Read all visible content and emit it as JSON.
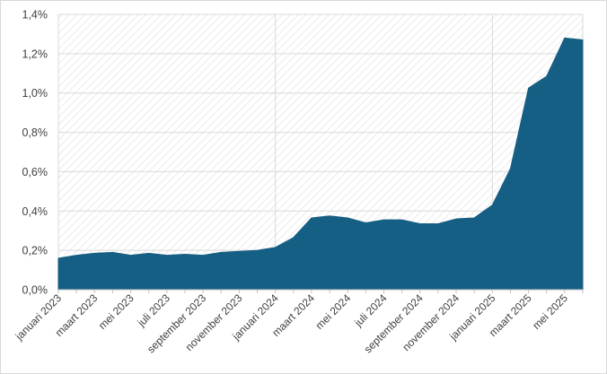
{
  "chart_data": {
    "type": "area",
    "title": "",
    "xlabel": "",
    "ylabel": "",
    "ylim": [
      0,
      1.4
    ],
    "grid": true,
    "legend": "none",
    "yticks": [
      "0,0%",
      "0,2%",
      "0,4%",
      "0,6%",
      "0,8%",
      "1,0%",
      "1,2%",
      "1,4%"
    ],
    "x": [
      "januari 2023",
      "februari 2023",
      "maart 2023",
      "april 2023",
      "mei 2023",
      "juni 2023",
      "juli 2023",
      "augustus 2023",
      "september 2023",
      "oktober 2023",
      "november 2023",
      "december 2023",
      "januari 2024",
      "februari 2024",
      "maart 2024",
      "april 2024",
      "mei 2024",
      "juni 2024",
      "juli 2024",
      "augustus 2024",
      "september 2024",
      "oktober 2024",
      "november 2024",
      "december 2024",
      "januari 2025",
      "februari 2025",
      "maart 2025",
      "april 2025",
      "mei 2025",
      "juni 2025"
    ],
    "xtick_labels": [
      "januari 2023",
      "maart 2023",
      "mei 2023",
      "juli 2023",
      "september 2023",
      "november 2023",
      "januari 2024",
      "maart 2024",
      "mei 2024",
      "juli 2024",
      "september 2024",
      "november 2024",
      "januari 2025",
      "maart 2025",
      "mei 2025"
    ],
    "series": [
      {
        "values": [
          0.16,
          0.175,
          0.185,
          0.19,
          0.175,
          0.185,
          0.175,
          0.18,
          0.175,
          0.19,
          0.195,
          0.2,
          0.215,
          0.265,
          0.365,
          0.375,
          0.365,
          0.34,
          0.355,
          0.355,
          0.335,
          0.335,
          0.36,
          0.365,
          0.43,
          0.615,
          1.025,
          1.085,
          1.28,
          1.27
        ]
      }
    ],
    "colors": {
      "area": "#165f84",
      "grid": "#d9d9d9",
      "axis": "#bfbfbf",
      "hatch": "#e6e6e6"
    }
  }
}
